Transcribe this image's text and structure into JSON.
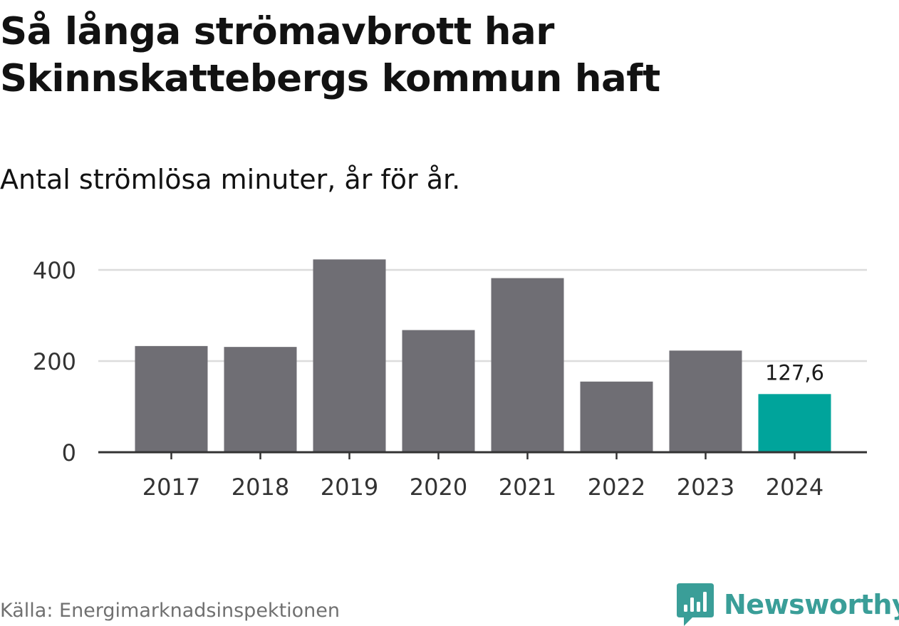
{
  "header": {
    "title_line1": "Så långa strömavbrott har",
    "title_line2": "Skinnskattebergs kommun haft",
    "subtitle": "Antal strömlösa minuter, år för år."
  },
  "chart_data": {
    "type": "bar",
    "title": "Så långa strömavbrott har Skinnskattebergs kommun haft",
    "subtitle": "Antal strömlösa minuter, år för år.",
    "xlabel": "",
    "ylabel": "",
    "categories": [
      "2017",
      "2018",
      "2019",
      "2020",
      "2021",
      "2022",
      "2023",
      "2024"
    ],
    "values": [
      233,
      231,
      423,
      268,
      382,
      155,
      223,
      127.6
    ],
    "ylim": [
      0,
      423
    ],
    "yticks": [
      0,
      200,
      400
    ],
    "ytick_labels": [
      "0",
      "200",
      "400"
    ],
    "grid": true,
    "highlight_index": 7,
    "data_labels": [
      {
        "index": 7,
        "text": "127,6"
      }
    ],
    "colors": {
      "bar": "#6f6e74",
      "highlight": "#00a49b",
      "grid": "#dcdcdc",
      "axis": "#333333",
      "tick_text": "#333333"
    }
  },
  "footer": {
    "source": "Källa: Energimarknadsinspektionen",
    "brand_name": "Newsworthy",
    "brand_icon": "newsworthy-logo-icon",
    "brand_color": "#3a9e98"
  }
}
